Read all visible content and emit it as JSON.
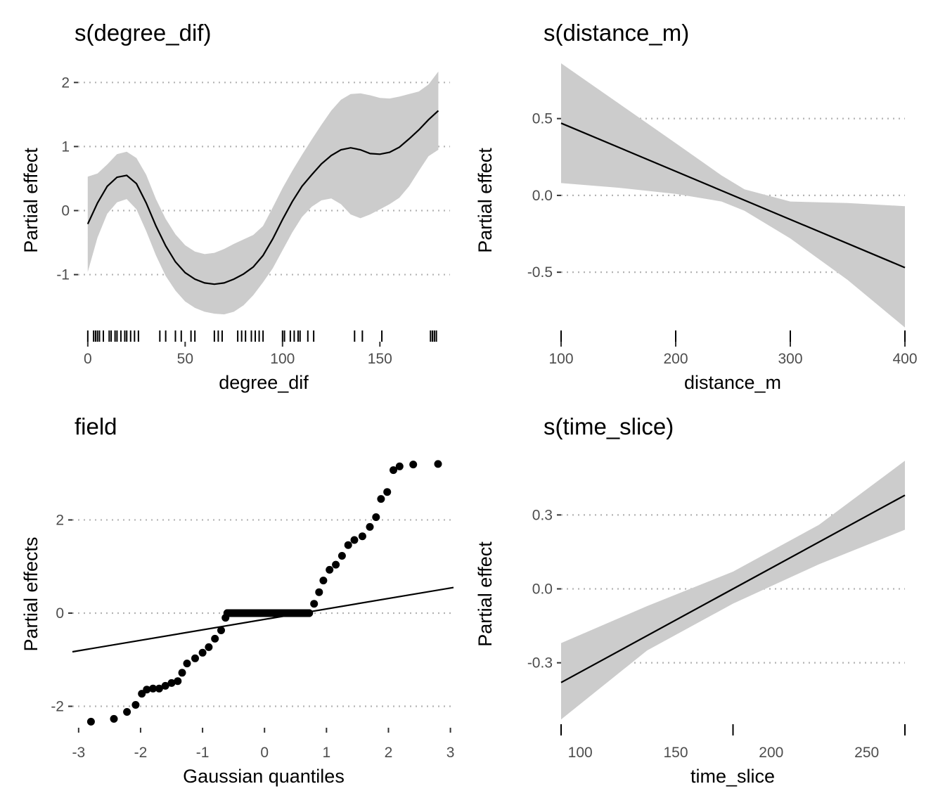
{
  "chart_data": [
    {
      "id": "p1",
      "type": "line",
      "title": "s(degree_dif)",
      "xlabel": "degree_dif",
      "ylabel": "Partial effect",
      "xlim": [
        -5,
        186
      ],
      "ylim": [
        -1.85,
        2.3
      ],
      "xticks": [
        0,
        50,
        100,
        150
      ],
      "yticks": [
        2,
        1,
        0,
        -1
      ],
      "grid": "horizontal-dotted",
      "fit": [
        [
          0,
          -0.21
        ],
        [
          5,
          0.12
        ],
        [
          10,
          0.38
        ],
        [
          15,
          0.52
        ],
        [
          20,
          0.55
        ],
        [
          25,
          0.42
        ],
        [
          30,
          0.12
        ],
        [
          35,
          -0.24
        ],
        [
          40,
          -0.55
        ],
        [
          45,
          -0.8
        ],
        [
          50,
          -0.97
        ],
        [
          55,
          -1.07
        ],
        [
          60,
          -1.13
        ],
        [
          65,
          -1.15
        ],
        [
          70,
          -1.13
        ],
        [
          75,
          -1.07
        ],
        [
          80,
          -0.99
        ],
        [
          85,
          -0.88
        ],
        [
          90,
          -0.7
        ],
        [
          95,
          -0.44
        ],
        [
          100,
          -0.14
        ],
        [
          105,
          0.14
        ],
        [
          110,
          0.38
        ],
        [
          115,
          0.56
        ],
        [
          120,
          0.73
        ],
        [
          125,
          0.86
        ],
        [
          130,
          0.95
        ],
        [
          135,
          0.98
        ],
        [
          140,
          0.95
        ],
        [
          145,
          0.89
        ],
        [
          150,
          0.88
        ],
        [
          155,
          0.91
        ],
        [
          160,
          0.99
        ],
        [
          165,
          1.12
        ],
        [
          170,
          1.26
        ],
        [
          175,
          1.42
        ],
        [
          180,
          1.56
        ]
      ],
      "band_upper": [
        [
          0,
          0.53
        ],
        [
          5,
          0.58
        ],
        [
          10,
          0.72
        ],
        [
          15,
          0.88
        ],
        [
          20,
          0.92
        ],
        [
          25,
          0.82
        ],
        [
          30,
          0.56
        ],
        [
          35,
          0.18
        ],
        [
          40,
          -0.13
        ],
        [
          45,
          -0.37
        ],
        [
          50,
          -0.54
        ],
        [
          55,
          -0.64
        ],
        [
          60,
          -0.68
        ],
        [
          65,
          -0.66
        ],
        [
          70,
          -0.6
        ],
        [
          75,
          -0.52
        ],
        [
          80,
          -0.45
        ],
        [
          85,
          -0.38
        ],
        [
          90,
          -0.24
        ],
        [
          95,
          0.05
        ],
        [
          100,
          0.35
        ],
        [
          105,
          0.62
        ],
        [
          110,
          0.87
        ],
        [
          115,
          1.11
        ],
        [
          120,
          1.34
        ],
        [
          125,
          1.56
        ],
        [
          130,
          1.73
        ],
        [
          135,
          1.82
        ],
        [
          140,
          1.83
        ],
        [
          145,
          1.8
        ],
        [
          150,
          1.76
        ],
        [
          155,
          1.75
        ],
        [
          160,
          1.78
        ],
        [
          165,
          1.82
        ],
        [
          170,
          1.86
        ],
        [
          175,
          1.97
        ],
        [
          180,
          2.17
        ]
      ],
      "band_lower": [
        [
          0,
          -0.96
        ],
        [
          5,
          -0.42
        ],
        [
          10,
          -0.05
        ],
        [
          15,
          0.13
        ],
        [
          20,
          0.18
        ],
        [
          25,
          0.02
        ],
        [
          30,
          -0.32
        ],
        [
          35,
          -0.7
        ],
        [
          40,
          -1.02
        ],
        [
          45,
          -1.25
        ],
        [
          50,
          -1.42
        ],
        [
          55,
          -1.52
        ],
        [
          60,
          -1.58
        ],
        [
          65,
          -1.61
        ],
        [
          70,
          -1.62
        ],
        [
          75,
          -1.58
        ],
        [
          80,
          -1.48
        ],
        [
          85,
          -1.32
        ],
        [
          90,
          -1.12
        ],
        [
          95,
          -0.9
        ],
        [
          100,
          -0.62
        ],
        [
          105,
          -0.34
        ],
        [
          110,
          -0.1
        ],
        [
          115,
          0.06
        ],
        [
          120,
          0.16
        ],
        [
          125,
          0.19
        ],
        [
          130,
          0.1
        ],
        [
          135,
          -0.06
        ],
        [
          140,
          -0.12
        ],
        [
          145,
          -0.06
        ],
        [
          150,
          0.02
        ],
        [
          155,
          0.1
        ],
        [
          160,
          0.2
        ],
        [
          165,
          0.38
        ],
        [
          170,
          0.62
        ],
        [
          175,
          0.85
        ],
        [
          180,
          0.95
        ]
      ],
      "rug": [
        0,
        3,
        4,
        5,
        6,
        8,
        11,
        12,
        14,
        15,
        17,
        19,
        20,
        22,
        24,
        26,
        37,
        40,
        45,
        48,
        53,
        55,
        65,
        67,
        69,
        77,
        79,
        81,
        84,
        86,
        88,
        90,
        100,
        101,
        104,
        106,
        108,
        109,
        113,
        116,
        137,
        141,
        151,
        176,
        177,
        178,
        179
      ]
    },
    {
      "id": "p2",
      "type": "line",
      "title": "s(distance_m)",
      "xlabel": "distance_m",
      "ylabel": "Partial effect",
      "xlim": [
        100,
        400
      ],
      "ylim": [
        -0.87,
        0.86
      ],
      "xticks": [
        100,
        200,
        300,
        400
      ],
      "yticks": [
        0.5,
        0.0,
        -0.5
      ],
      "grid": "horizontal-dotted",
      "fit": [
        [
          100,
          0.47
        ],
        [
          400,
          -0.47
        ]
      ],
      "band_upper": [
        [
          100,
          0.86
        ],
        [
          150,
          0.6
        ],
        [
          200,
          0.34
        ],
        [
          240,
          0.13
        ],
        [
          260,
          0.04
        ],
        [
          300,
          -0.04
        ],
        [
          350,
          -0.05
        ],
        [
          400,
          -0.07
        ]
      ],
      "band_lower": [
        [
          100,
          0.08
        ],
        [
          150,
          0.05
        ],
        [
          200,
          0.01
        ],
        [
          240,
          -0.04
        ],
        [
          260,
          -0.1
        ],
        [
          300,
          -0.28
        ],
        [
          350,
          -0.55
        ],
        [
          400,
          -0.86
        ]
      ],
      "rug": [
        100,
        200,
        300,
        400
      ]
    },
    {
      "id": "p3",
      "type": "scatter",
      "title": "field",
      "xlabel": "Gaussian quantiles",
      "ylabel": "Partial effects",
      "xlim": [
        -3.1,
        3.05
      ],
      "ylim": [
        -2.46,
        3.35
      ],
      "xticks": [
        -3,
        -2,
        -1,
        0,
        1,
        2,
        3
      ],
      "yticks": [
        2,
        0,
        -2
      ],
      "grid": "horizontal-dotted",
      "reference_line": [
        [
          -3.1,
          -0.83
        ],
        [
          3.05,
          0.55
        ]
      ],
      "points": [
        [
          -2.8,
          -2.33
        ],
        [
          -2.43,
          -2.27
        ],
        [
          -2.22,
          -2.12
        ],
        [
          -2.08,
          -1.97
        ],
        [
          -1.98,
          -1.73
        ],
        [
          -1.9,
          -1.64
        ],
        [
          -1.8,
          -1.62
        ],
        [
          -1.7,
          -1.62
        ],
        [
          -1.6,
          -1.56
        ],
        [
          -1.5,
          -1.5
        ],
        [
          -1.4,
          -1.46
        ],
        [
          -1.33,
          -1.28
        ],
        [
          -1.25,
          -1.08
        ],
        [
          -1.12,
          -0.97
        ],
        [
          -1.0,
          -0.85
        ],
        [
          -0.9,
          -0.73
        ],
        [
          -0.8,
          -0.55
        ],
        [
          -0.7,
          -0.37
        ],
        [
          -0.63,
          -0.1
        ],
        [
          -0.6,
          0.0
        ],
        [
          -0.4,
          0.0
        ],
        [
          -0.2,
          0.0
        ],
        [
          0.0,
          0.0
        ],
        [
          0.2,
          0.0
        ],
        [
          0.4,
          0.0
        ],
        [
          0.6,
          0.0
        ],
        [
          0.72,
          0.0
        ],
        [
          0.8,
          0.2
        ],
        [
          0.88,
          0.45
        ],
        [
          0.95,
          0.7
        ],
        [
          1.05,
          0.93
        ],
        [
          1.15,
          1.04
        ],
        [
          1.25,
          1.23
        ],
        [
          1.35,
          1.46
        ],
        [
          1.45,
          1.57
        ],
        [
          1.58,
          1.65
        ],
        [
          1.7,
          1.85
        ],
        [
          1.8,
          2.06
        ],
        [
          1.88,
          2.45
        ],
        [
          1.98,
          2.6
        ],
        [
          2.08,
          3.07
        ],
        [
          2.18,
          3.15
        ],
        [
          2.4,
          3.19
        ],
        [
          2.8,
          3.2
        ]
      ]
    },
    {
      "id": "p4",
      "type": "line",
      "title": "s(time_slice)",
      "xlabel": "time_slice",
      "ylabel": "Partial effect",
      "xlim": [
        90,
        270
      ],
      "ylim": [
        -0.535,
        0.535
      ],
      "xticks": [
        100,
        150,
        200,
        250
      ],
      "yticks": [
        0.3,
        0.0,
        -0.3
      ],
      "grid": "horizontal-dotted",
      "fit": [
        [
          90,
          -0.38
        ],
        [
          270,
          0.38
        ]
      ],
      "band_upper": [
        [
          90,
          -0.22
        ],
        [
          135,
          -0.07
        ],
        [
          180,
          0.07
        ],
        [
          225,
          0.26
        ],
        [
          270,
          0.52
        ]
      ],
      "band_lower": [
        [
          90,
          -0.53
        ],
        [
          135,
          -0.25
        ],
        [
          180,
          -0.06
        ],
        [
          225,
          0.1
        ],
        [
          270,
          0.24
        ]
      ],
      "rug": [
        90,
        180,
        270
      ]
    }
  ]
}
